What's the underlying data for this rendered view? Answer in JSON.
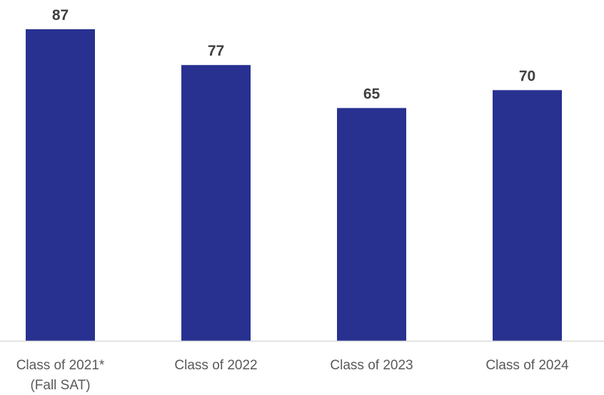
{
  "chart_data": {
    "type": "bar",
    "categories": [
      [
        "Class of 2021*",
        "(Fall SAT)"
      ],
      [
        "Class of 2022"
      ],
      [
        "Class of 2023"
      ],
      [
        "Class of 2024"
      ]
    ],
    "values": [
      87,
      77,
      65,
      70
    ],
    "title": "",
    "xlabel": "",
    "ylabel": "",
    "ylim": [
      0,
      87
    ],
    "grid": false,
    "legend": "none",
    "bar_color": "#283190",
    "axis_color": "#d9d9d9",
    "value_label_color": "#404040",
    "category_label_color": "#595959"
  }
}
